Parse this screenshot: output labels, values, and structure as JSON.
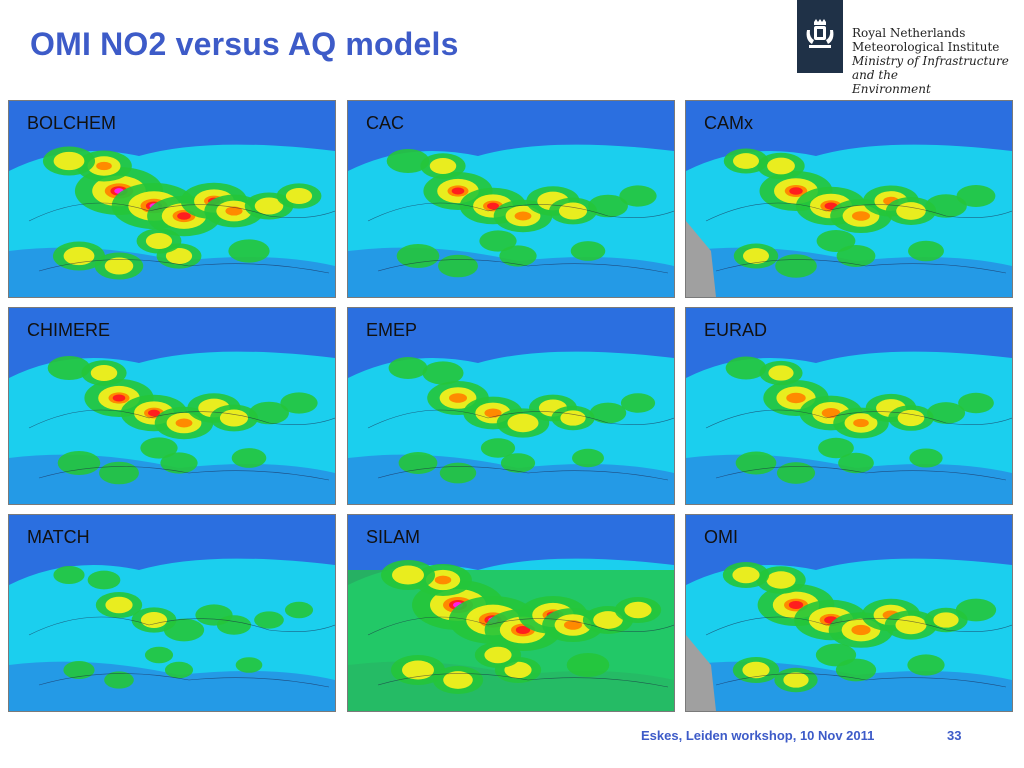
{
  "slide": {
    "title": "OMI NO2 versus AQ models",
    "footer": "Eskes, Leiden workshop, 10 Nov 2011",
    "page_number": "33"
  },
  "logo": {
    "icon": "dutch-royal-coat-of-arms-icon",
    "lines": [
      "Royal Netherlands",
      "Meteorological Institute"
    ],
    "italic_lines": [
      "Ministry of Infrastructure and the",
      "Environment"
    ]
  },
  "colors": {
    "title": "#3d5bc8",
    "low": "#2b6fe0",
    "cyan": "#19e0f0",
    "green": "#25c53a",
    "yellow": "#f4ef1c",
    "orange": "#ff8a00",
    "red": "#ff1e1e",
    "magenta": "#ff1ee8"
  },
  "panels": [
    {
      "label": "BOLCHEM"
    },
    {
      "label": "CAC"
    },
    {
      "label": "CAMx"
    },
    {
      "label": "CHIMERE"
    },
    {
      "label": "EMEP"
    },
    {
      "label": "EURAD"
    },
    {
      "label": "MATCH"
    },
    {
      "label": "SILAM"
    },
    {
      "label": "OMI"
    }
  ]
}
